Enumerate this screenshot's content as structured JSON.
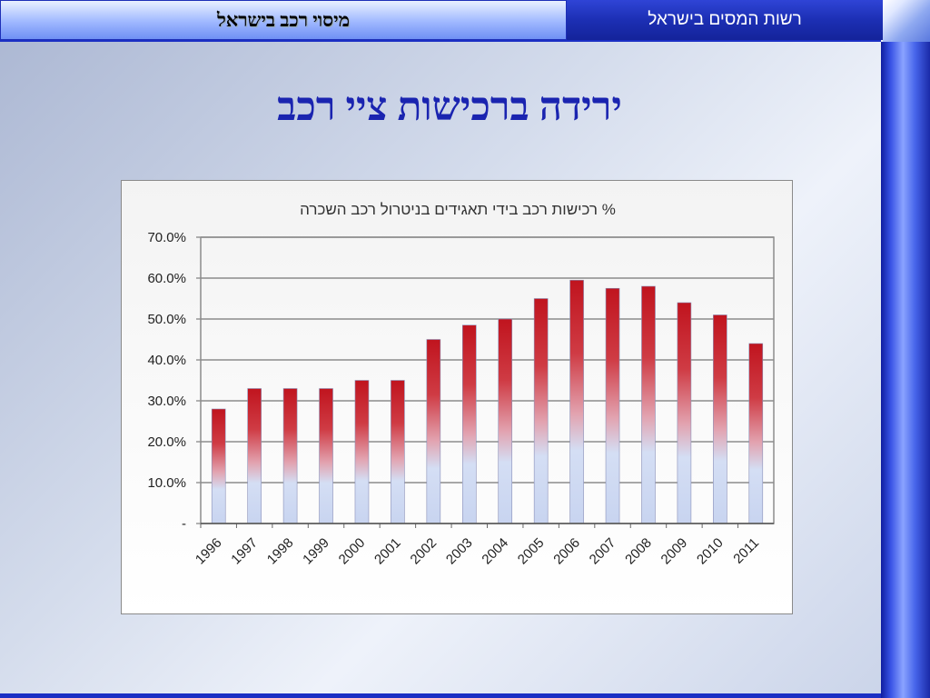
{
  "header": {
    "left_title": "מיסוי רכב בישראל",
    "right_title": "רשות המסים בישראל"
  },
  "slide": {
    "title": "ירידה ברכישות ציי רכב"
  },
  "chart_data": {
    "type": "bar",
    "title": "% רכישות רכב בידי תאגידים בניטרול רכב השכרה",
    "categories": [
      "1996",
      "1997",
      "1998",
      "1999",
      "2000",
      "2001",
      "2002",
      "2003",
      "2004",
      "2005",
      "2006",
      "2007",
      "2008",
      "2009",
      "2010",
      "2011"
    ],
    "values": [
      28,
      33,
      33,
      33,
      35,
      35,
      45,
      48.5,
      50,
      55,
      59.5,
      57.5,
      58,
      54,
      51,
      44
    ],
    "ylim": [
      0,
      70
    ],
    "yticks": [
      0,
      10,
      20,
      30,
      40,
      50,
      60,
      70
    ],
    "ytick_labels": [
      "-",
      "10.0%",
      "20.0%",
      "30.0%",
      "40.0%",
      "50.0%",
      "60.0%",
      "70.0%"
    ],
    "grid": true,
    "colors": {
      "bar_top": "#c0141e",
      "bar_bottom": "#d4def4"
    }
  }
}
